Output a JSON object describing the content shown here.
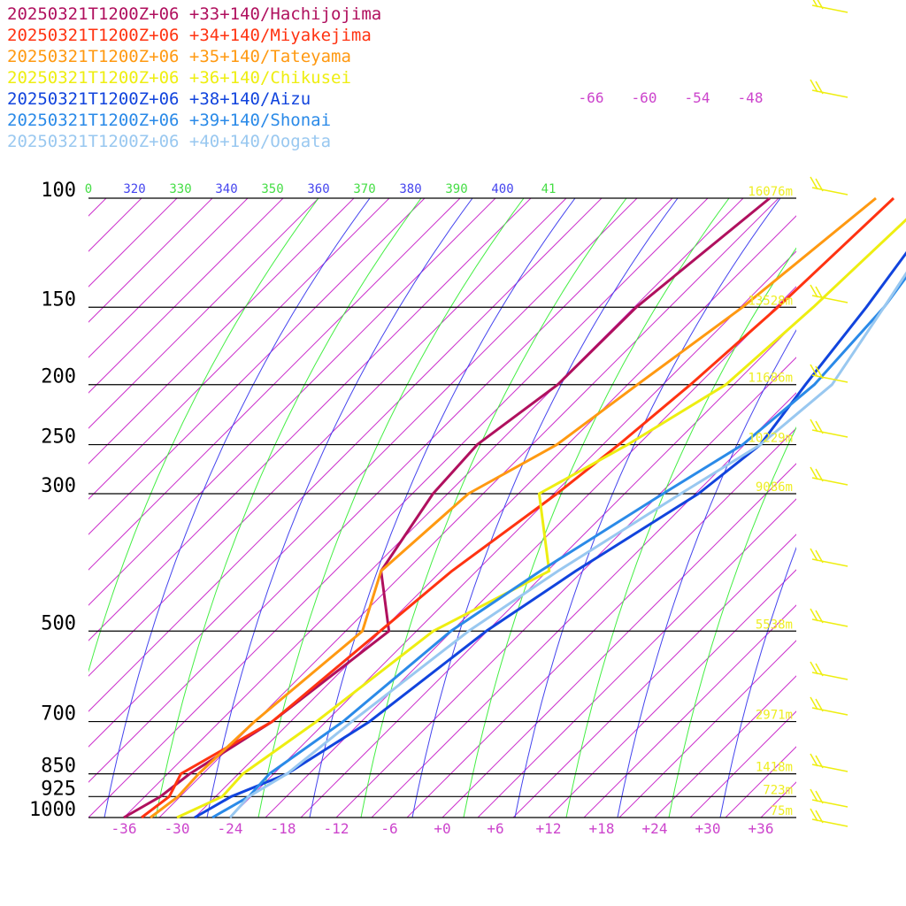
{
  "chart_data": {
    "type": "line",
    "title": "",
    "stations": [
      {
        "name": "20250321T1200Z+06 +33+140/Hachijojima",
        "color": "#b0105e"
      },
      {
        "name": "20250321T1200Z+06 +34+140/Miyakejima",
        "color": "#ff3311"
      },
      {
        "name": "20250321T1200Z+06 +35+140/Tateyama",
        "color": "#ff9911"
      },
      {
        "name": "20250321T1200Z+06 +36+140/Chikusei",
        "color": "#eeee11"
      },
      {
        "name": "20250321T1200Z+06 +38+140/Aizu",
        "color": "#1144dd"
      },
      {
        "name": "20250321T1200Z+06 +39+140/Shonai",
        "color": "#2a8ae8"
      },
      {
        "name": "20250321T1200Z+06 +40+140/Oogata",
        "color": "#99c8f0"
      }
    ],
    "pressure_levels": [
      {
        "label": "100",
        "p": 100
      },
      {
        "label": "150",
        "p": 150
      },
      {
        "label": "200",
        "p": 200
      },
      {
        "label": "250",
        "p": 250
      },
      {
        "label": "300",
        "p": 300
      },
      {
        "label": "500",
        "p": 500
      },
      {
        "label": "700",
        "p": 700
      },
      {
        "label": "850",
        "p": 850
      },
      {
        "label": "925",
        "p": 925
      },
      {
        "label": "1000",
        "p": 1000
      }
    ],
    "heights": [
      {
        "p": 100,
        "label": "16076m"
      },
      {
        "p": 150,
        "label": "13528m"
      },
      {
        "p": 200,
        "label": "11686m"
      },
      {
        "p": 250,
        "label": "10229m"
      },
      {
        "p": 300,
        "label": "9086m"
      },
      {
        "p": 500,
        "label": "5538m"
      },
      {
        "p": 700,
        "label": "2971m"
      },
      {
        "p": 850,
        "label": "1418m"
      },
      {
        "p": 925,
        "label": "723m"
      },
      {
        "p": 1000,
        "label": "75m"
      }
    ],
    "x_ticks": [
      {
        "v": -36,
        "label": "-36"
      },
      {
        "v": -30,
        "label": "-30"
      },
      {
        "v": -24,
        "label": "-24"
      },
      {
        "v": -18,
        "label": "-18"
      },
      {
        "v": -12,
        "label": "-12"
      },
      {
        "v": -6,
        "label": "-6"
      },
      {
        "v": 0,
        "label": "+0"
      },
      {
        "v": 6,
        "label": "+6"
      },
      {
        "v": 12,
        "label": "+12"
      },
      {
        "v": 18,
        "label": "+18"
      },
      {
        "v": 24,
        "label": "+24"
      },
      {
        "v": 30,
        "label": "+30"
      },
      {
        "v": 36,
        "label": "+36"
      }
    ],
    "upper_temp_labels": [
      "-66",
      "-60",
      "-54",
      "-48"
    ],
    "theta_labels": [
      {
        "label": "0",
        "kind": "dry"
      },
      {
        "label": "320",
        "kind": "moist"
      },
      {
        "label": "330",
        "kind": "dry"
      },
      {
        "label": "340",
        "kind": "moist"
      },
      {
        "label": "350",
        "kind": "dry"
      },
      {
        "label": "360",
        "kind": "moist"
      },
      {
        "label": "370",
        "kind": "dry"
      },
      {
        "label": "380",
        "kind": "moist"
      },
      {
        "label": "390",
        "kind": "dry"
      },
      {
        "label": "400",
        "kind": "moist"
      },
      {
        "label": "41",
        "kind": "dry"
      }
    ],
    "profiles": [
      [
        [
          -36,
          1000
        ],
        [
          -34,
          925
        ],
        [
          -33,
          850
        ],
        [
          -29,
          700
        ],
        [
          -25,
          500
        ],
        [
          -32,
          400
        ],
        [
          -34,
          300
        ],
        [
          -34,
          250
        ],
        [
          -31,
          200
        ],
        [
          -30,
          150
        ],
        [
          -26,
          100
        ]
      ],
      [
        [
          -34,
          1000
        ],
        [
          -33,
          925
        ],
        [
          -34,
          850
        ],
        [
          -29,
          700
        ],
        [
          -26,
          500
        ],
        [
          -24,
          400
        ],
        [
          -20,
          300
        ],
        [
          -18,
          250
        ],
        [
          -16,
          200
        ],
        [
          -14,
          150
        ],
        [
          -12,
          100
        ]
      ],
      [
        [
          -33,
          1000
        ],
        [
          -32,
          925
        ],
        [
          -32,
          850
        ],
        [
          -31,
          700
        ],
        [
          -28,
          500
        ],
        [
          -32,
          400
        ],
        [
          -30,
          300
        ],
        [
          -25,
          250
        ],
        [
          -22,
          200
        ],
        [
          -18,
          150
        ],
        [
          -14,
          100
        ]
      ],
      [
        [
          -30,
          1000
        ],
        [
          -27,
          925
        ],
        [
          -27,
          850
        ],
        [
          -24,
          700
        ],
        [
          -20,
          500
        ],
        [
          -13,
          400
        ],
        [
          -22,
          300
        ],
        [
          -17,
          250
        ],
        [
          -12,
          200
        ],
        [
          -10,
          150
        ],
        [
          -8,
          100
        ]
      ],
      [
        [
          -28,
          1000
        ],
        [
          -26,
          925
        ],
        [
          -22,
          850
        ],
        [
          -18,
          700
        ],
        [
          -14,
          500
        ],
        [
          -10,
          400
        ],
        [
          -4,
          300
        ],
        [
          -2,
          250
        ],
        [
          -3,
          200
        ],
        [
          -4,
          150
        ],
        [
          -6,
          100
        ]
      ],
      [
        [
          -26,
          1000
        ],
        [
          -24,
          925
        ],
        [
          -24,
          850
        ],
        [
          -21,
          700
        ],
        [
          -18,
          500
        ],
        [
          -14,
          400
        ],
        [
          -8,
          300
        ],
        [
          -4,
          250
        ],
        [
          -2,
          200
        ],
        [
          -2,
          150
        ],
        [
          -4,
          100
        ]
      ],
      [
        [
          -24,
          1000
        ],
        [
          -24,
          925
        ],
        [
          -22,
          850
        ],
        [
          -20,
          700
        ],
        [
          -16,
          500
        ],
        [
          -12,
          400
        ],
        [
          -6,
          300
        ],
        [
          -2,
          250
        ],
        [
          0,
          200
        ],
        [
          -2,
          150
        ],
        [
          -5,
          100
        ]
      ]
    ],
    "xlim": [
      -40,
      40
    ],
    "ylim": [
      1000,
      100
    ]
  }
}
